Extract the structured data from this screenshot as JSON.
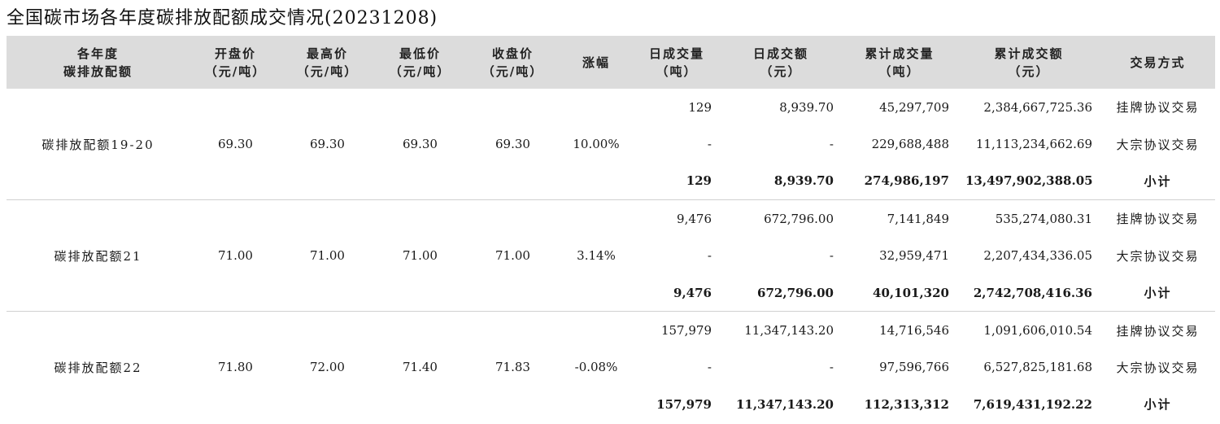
{
  "title": "全国碳市场各年度碳排放配额成交情况(20231208)",
  "headers": [
    [
      "各年度",
      "碳排放配额"
    ],
    [
      "开盘价",
      "（元/吨）"
    ],
    [
      "最高价",
      "（元/吨）"
    ],
    [
      "最低价",
      "（元/吨）"
    ],
    [
      "收盘价",
      "（元/吨）"
    ],
    [
      "涨幅"
    ],
    [
      "日成交量",
      "（吨）"
    ],
    [
      "日成交额",
      "（元）"
    ],
    [
      "累计成交量",
      "（吨）"
    ],
    [
      "累计成交额",
      "（元）"
    ],
    [
      "交易方式"
    ]
  ],
  "groups": [
    {
      "name": "碳排放配额19-20",
      "open": "69.30",
      "high": "69.30",
      "low": "69.30",
      "close": "69.30",
      "change": "10.00%",
      "rows": [
        {
          "vol": "129",
          "amt": "8,939.70",
          "cum_vol": "45,297,709",
          "cum_amt": "2,384,667,725.36",
          "type": "挂牌协议交易"
        },
        {
          "vol": "-",
          "amt": "-",
          "cum_vol": "229,688,488",
          "cum_amt": "11,113,234,662.69",
          "type": "大宗协议交易"
        },
        {
          "vol": "129",
          "amt": "8,939.70",
          "cum_vol": "274,986,197",
          "cum_amt": "13,497,902,388.05",
          "type": "小计"
        }
      ]
    },
    {
      "name": "碳排放配额21",
      "open": "71.00",
      "high": "71.00",
      "low": "71.00",
      "close": "71.00",
      "change": "3.14%",
      "rows": [
        {
          "vol": "9,476",
          "amt": "672,796.00",
          "cum_vol": "7,141,849",
          "cum_amt": "535,274,080.31",
          "type": "挂牌协议交易"
        },
        {
          "vol": "-",
          "amt": "-",
          "cum_vol": "32,959,471",
          "cum_amt": "2,207,434,336.05",
          "type": "大宗协议交易"
        },
        {
          "vol": "9,476",
          "amt": "672,796.00",
          "cum_vol": "40,101,320",
          "cum_amt": "2,742,708,416.36",
          "type": "小计"
        }
      ]
    },
    {
      "name": "碳排放配额22",
      "open": "71.80",
      "high": "72.00",
      "low": "71.40",
      "close": "71.83",
      "change": "-0.08%",
      "rows": [
        {
          "vol": "157,979",
          "amt": "11,347,143.20",
          "cum_vol": "14,716,546",
          "cum_amt": "1,091,606,010.54",
          "type": "挂牌协议交易"
        },
        {
          "vol": "-",
          "amt": "-",
          "cum_vol": "97,596,766",
          "cum_amt": "6,527,825,181.68",
          "type": "大宗协议交易"
        },
        {
          "vol": "157,979",
          "amt": "11,347,143.20",
          "cum_vol": "112,313,312",
          "cum_amt": "7,619,431,192.22",
          "type": "小计"
        }
      ]
    }
  ]
}
